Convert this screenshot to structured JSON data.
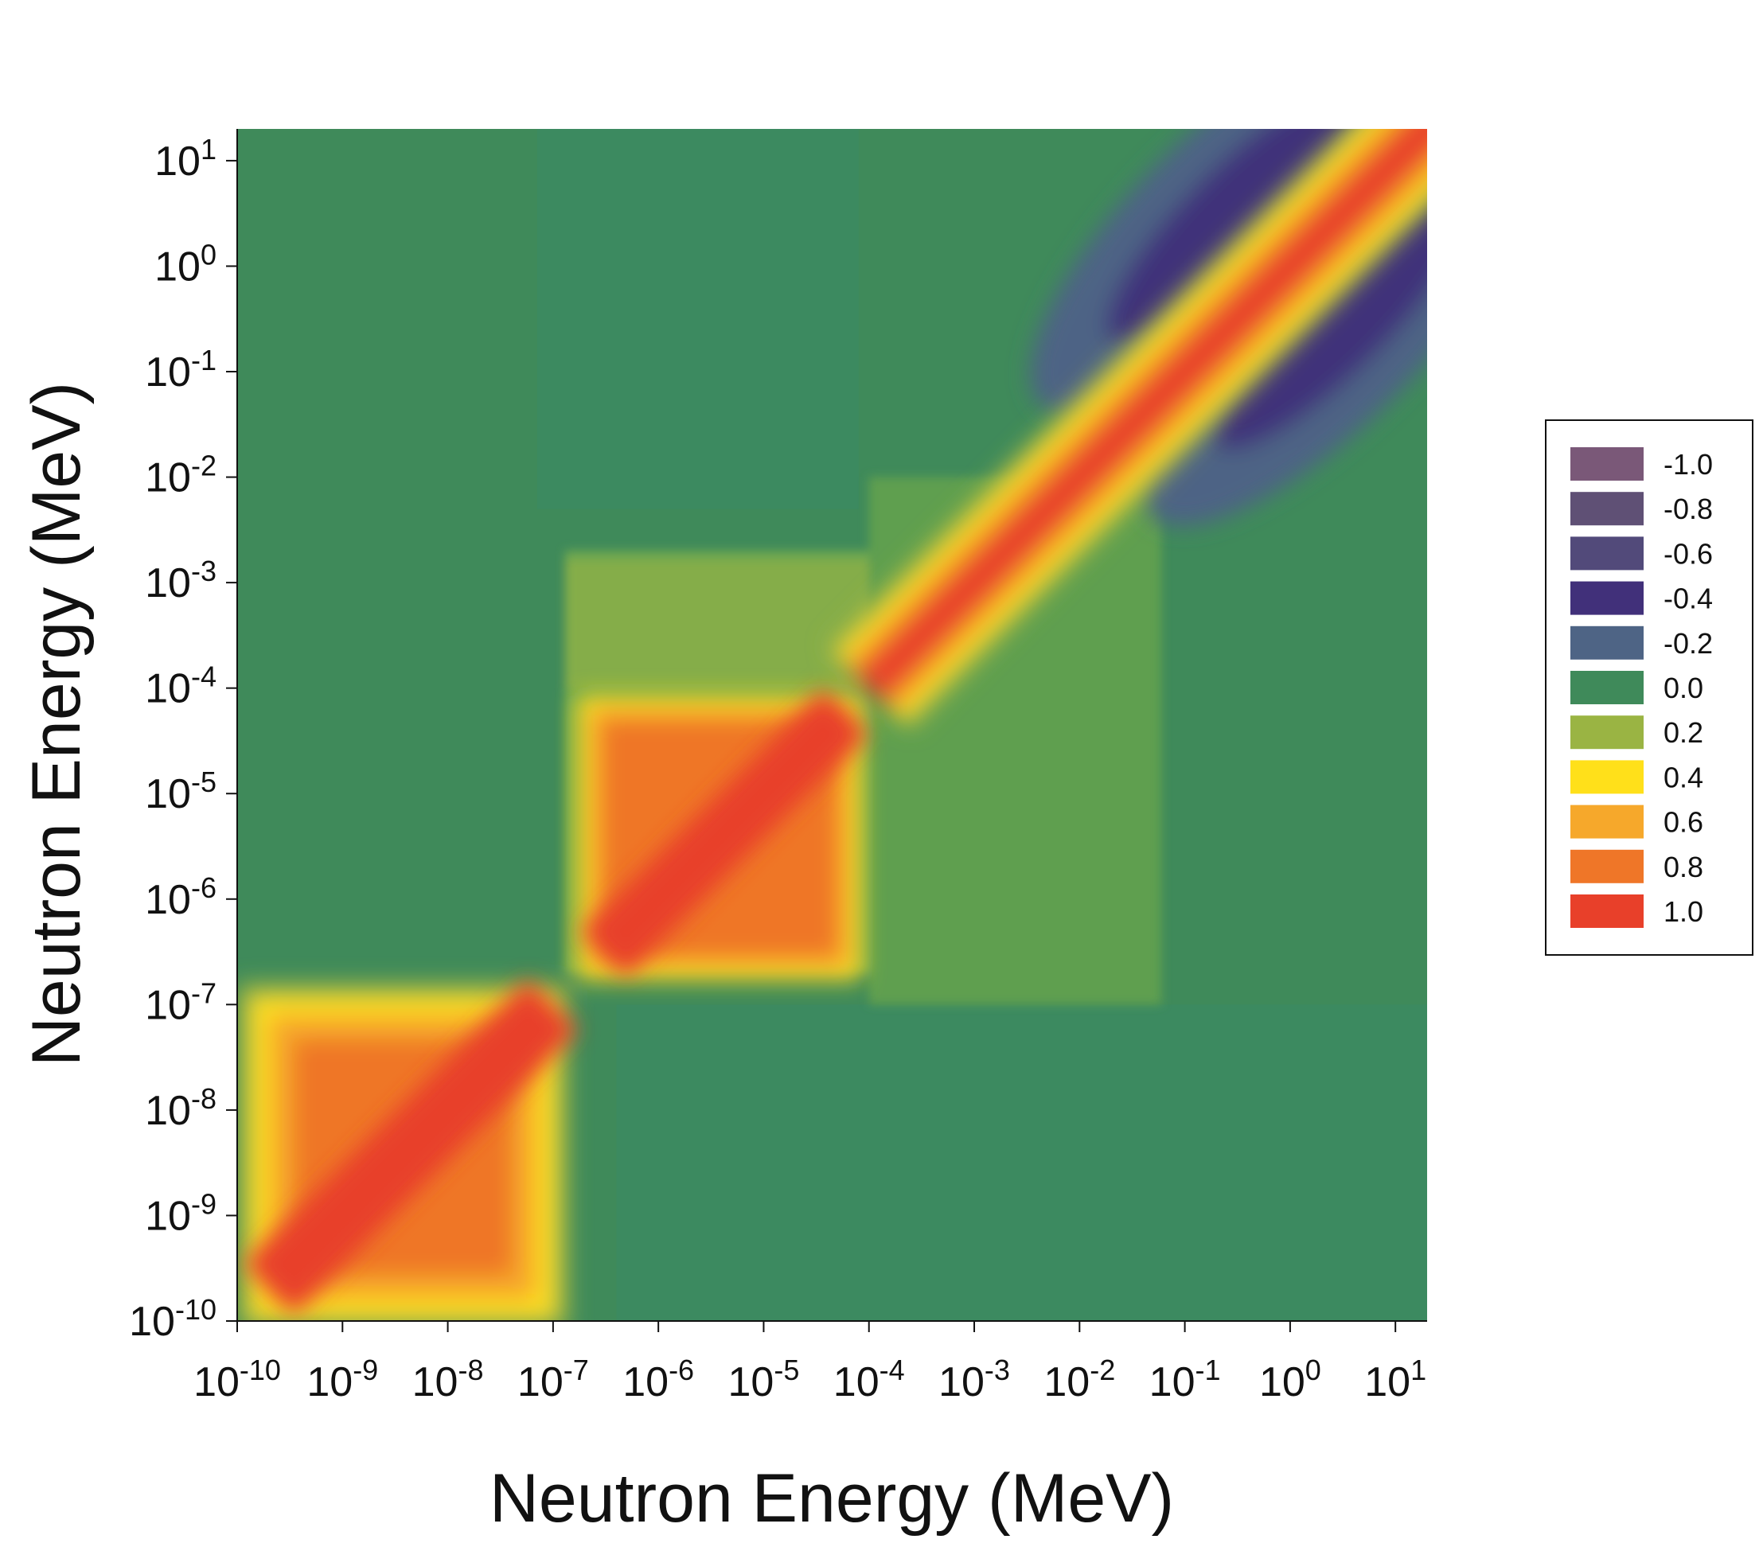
{
  "chart_data": {
    "type": "heatmap",
    "title": "",
    "xlabel": "Neutron Energy (MeV)",
    "ylabel": "Neutron Energy (MeV)",
    "x_scale": "log",
    "y_scale": "log",
    "xlim": [
      1e-10,
      20
    ],
    "ylim": [
      1e-10,
      20
    ],
    "x_ticks": [
      {
        "base": "10",
        "exp": "-10"
      },
      {
        "base": "10",
        "exp": "-9"
      },
      {
        "base": "10",
        "exp": "-8"
      },
      {
        "base": "10",
        "exp": "-7"
      },
      {
        "base": "10",
        "exp": "-6"
      },
      {
        "base": "10",
        "exp": "-5"
      },
      {
        "base": "10",
        "exp": "-4"
      },
      {
        "base": "10",
        "exp": "-3"
      },
      {
        "base": "10",
        "exp": "-2"
      },
      {
        "base": "10",
        "exp": "-1"
      },
      {
        "base": "10",
        "exp": "0"
      },
      {
        "base": "10",
        "exp": "1"
      }
    ],
    "y_ticks": [
      {
        "base": "10",
        "exp": "-10"
      },
      {
        "base": "10",
        "exp": "-9"
      },
      {
        "base": "10",
        "exp": "-8"
      },
      {
        "base": "10",
        "exp": "-7"
      },
      {
        "base": "10",
        "exp": "-6"
      },
      {
        "base": "10",
        "exp": "-5"
      },
      {
        "base": "10",
        "exp": "-4"
      },
      {
        "base": "10",
        "exp": "-3"
      },
      {
        "base": "10",
        "exp": "-2"
      },
      {
        "base": "10",
        "exp": "-1"
      },
      {
        "base": "10",
        "exp": "0"
      },
      {
        "base": "10",
        "exp": "1"
      }
    ],
    "grid": false,
    "legend_position": "right",
    "legend": [
      {
        "label": "-1.0",
        "value": -1.0,
        "color": "#7a5878"
      },
      {
        "label": "-0.8",
        "value": -0.8,
        "color": "#5f5075"
      },
      {
        "label": "-0.6",
        "value": -0.6,
        "color": "#524a7a"
      },
      {
        "label": "-0.4",
        "value": -0.4,
        "color": "#41307a"
      },
      {
        "label": "-0.2",
        "value": -0.2,
        "color": "#4e6485"
      },
      {
        "label": "0.0",
        "value": 0.0,
        "color": "#3f8a5a"
      },
      {
        "label": "0.2",
        "value": 0.2,
        "color": "#9ab443"
      },
      {
        "label": "0.4",
        "value": 0.4,
        "color": "#ffe01a"
      },
      {
        "label": "0.6",
        "value": 0.6,
        "color": "#f6a82b"
      },
      {
        "label": "0.8",
        "value": 0.8,
        "color": "#ef7628"
      },
      {
        "label": "1.0",
        "value": 1.0,
        "color": "#e8402a"
      }
    ],
    "regions": [
      {
        "description": "low-energy block",
        "x_range": [
          1e-10,
          1.3e-07
        ],
        "y_range": [
          1e-10,
          1.3e-07
        ],
        "value": 0.9
      },
      {
        "description": "mid-energy block",
        "x_range": [
          1.8e-07,
          8e-05
        ],
        "y_range": [
          1.8e-07,
          8e-05
        ],
        "value": 0.85
      },
      {
        "description": "diagonal band",
        "x_range": [
          0.0001,
          20
        ],
        "y_range": [
          0.0001,
          20
        ],
        "value": 1.0
      },
      {
        "description": "off-diagonal lobe above",
        "center": [
          0.3,
          3
        ],
        "value": -0.4
      },
      {
        "description": "off-diagonal lobe below",
        "center": [
          3,
          0.3
        ],
        "value": -0.4
      },
      {
        "description": "weak positive plateau",
        "x_range": [
          1e-07,
          0.1
        ],
        "y_range": [
          1e-07,
          0.01
        ],
        "value": 0.15
      }
    ]
  }
}
